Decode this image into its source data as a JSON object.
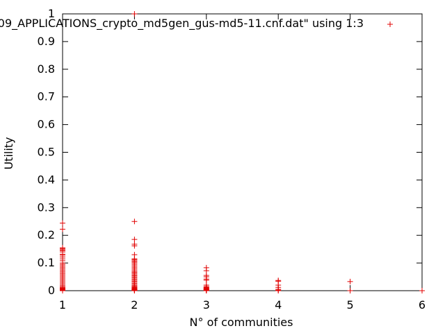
{
  "chart_data": {
    "type": "scatter",
    "title": "",
    "xlabel": "N° of communities",
    "ylabel": "Utility",
    "xlim": [
      1,
      6
    ],
    "ylim": [
      0,
      1
    ],
    "xticks": [
      "1",
      "2",
      "3",
      "4",
      "5",
      "6"
    ],
    "yticks": [
      "0",
      "0.1",
      "0.2",
      "0.3",
      "0.4",
      "0.5",
      "0.6",
      "0.7",
      "0.8",
      "0.9",
      "1"
    ],
    "grid": false,
    "legend_position": "top-right",
    "marker_color": "#e00000",
    "series": [
      {
        "name": "09_APPLICATIONS_crypto_md5gen_gus-md5-11.cnf.dat\" using 1:3",
        "x": [
          1,
          1,
          1,
          1,
          1,
          1,
          1,
          1,
          1,
          1,
          1,
          1,
          1,
          1,
          1,
          1,
          1,
          1,
          1,
          1,
          1,
          1,
          1,
          1,
          1,
          1,
          1,
          1,
          1,
          1,
          1,
          1,
          1,
          1,
          1,
          1,
          1,
          1,
          1,
          1,
          2,
          2,
          2,
          2,
          2,
          2,
          2,
          2,
          2,
          2,
          2,
          2,
          2,
          2,
          2,
          2,
          2,
          2,
          2,
          2,
          2,
          2,
          2,
          2,
          2,
          2,
          2,
          2,
          2,
          2,
          2,
          2,
          2,
          2,
          2,
          2,
          2,
          2,
          2,
          2,
          2,
          3,
          3,
          3,
          3,
          3,
          3,
          3,
          3,
          3,
          3,
          3,
          3,
          3,
          3,
          3,
          3,
          3,
          4,
          4,
          4,
          4,
          4,
          4,
          4,
          5,
          5,
          6
        ],
        "y": [
          0.244,
          0.222,
          0.155,
          0.152,
          0.148,
          0.145,
          0.132,
          0.128,
          0.122,
          0.115,
          0.108,
          0.1,
          0.095,
          0.09,
          0.085,
          0.08,
          0.075,
          0.07,
          0.065,
          0.06,
          0.055,
          0.05,
          0.045,
          0.04,
          0.035,
          0.03,
          0.025,
          0.02,
          0.016,
          0.012,
          0.01,
          0.008,
          0.006,
          0.005,
          0.004,
          0.003,
          0.002,
          0.001,
          0.0,
          0.14,
          1.0,
          0.25,
          0.185,
          0.168,
          0.162,
          0.13,
          0.115,
          0.112,
          0.108,
          0.104,
          0.1,
          0.095,
          0.09,
          0.085,
          0.08,
          0.075,
          0.07,
          0.066,
          0.062,
          0.058,
          0.054,
          0.05,
          0.046,
          0.042,
          0.038,
          0.034,
          0.03,
          0.026,
          0.022,
          0.018,
          0.015,
          0.012,
          0.01,
          0.008,
          0.006,
          0.005,
          0.004,
          0.003,
          0.002,
          0.001,
          0.0,
          0.083,
          0.072,
          0.055,
          0.05,
          0.042,
          0.038,
          0.02,
          0.015,
          0.012,
          0.01,
          0.008,
          0.006,
          0.005,
          0.003,
          0.002,
          0.001,
          0.0,
          0.037,
          0.034,
          0.02,
          0.012,
          0.005,
          0.002,
          0.0,
          0.033,
          0.0,
          0.0
        ]
      }
    ]
  }
}
